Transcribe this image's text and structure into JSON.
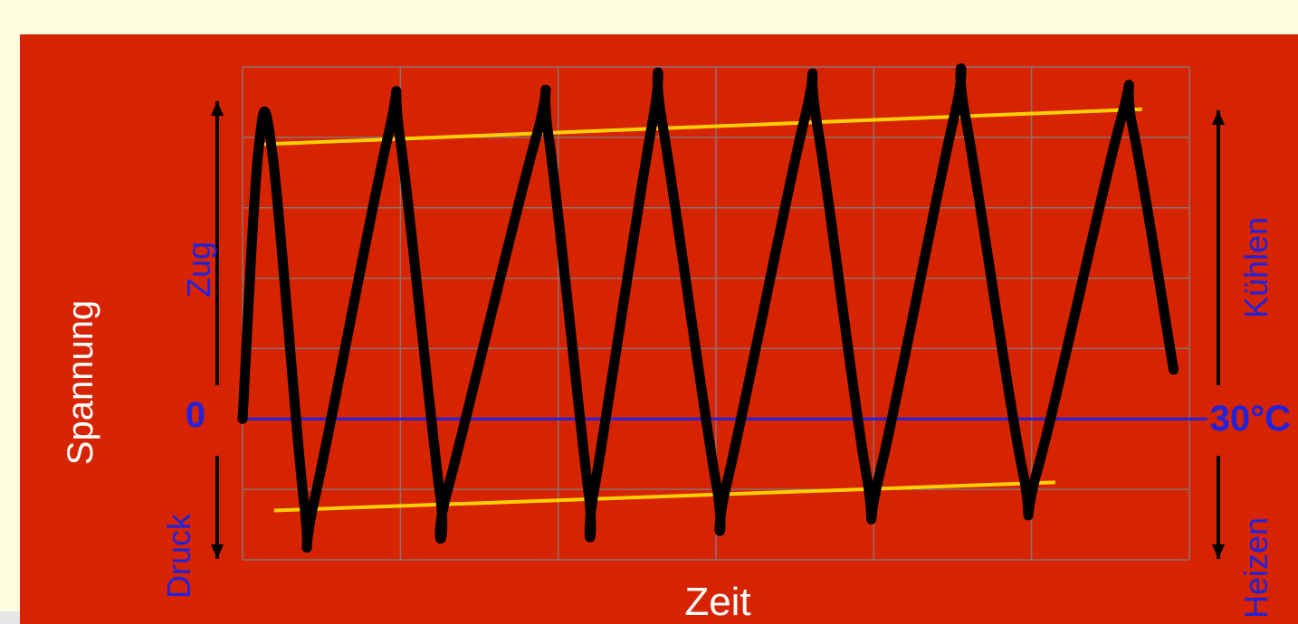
{
  "chart_data": {
    "type": "line",
    "ylabel": "Spannung",
    "xlabel": "Zeit",
    "left_labels": {
      "upper": "Zug",
      "zero": "0",
      "lower": "Druck"
    },
    "right_labels": {
      "upper": "Kühlen",
      "zero": "30°C",
      "lower": "Heizen"
    },
    "xlim": [
      0,
      6
    ],
    "ylim": [
      -2,
      5
    ],
    "grid": true,
    "series": [
      {
        "values": [
          [
            0.0,
            0.0
          ],
          [
            0.1,
            3.8
          ],
          [
            0.19,
            3.75
          ],
          [
            0.39,
            -1.2
          ],
          [
            0.46,
            -1.1
          ],
          [
            0.92,
            4.0
          ],
          [
            1.0,
            3.95
          ],
          [
            1.25,
            -1.05
          ],
          [
            1.3,
            -1.0
          ],
          [
            1.86,
            4.0
          ],
          [
            1.94,
            4.0
          ],
          [
            2.19,
            -1.0
          ],
          [
            2.23,
            -0.98
          ],
          [
            2.6,
            4.25
          ],
          [
            2.66,
            4.2
          ],
          [
            3.0,
            -0.9
          ],
          [
            3.07,
            -0.9
          ],
          [
            3.56,
            4.25
          ],
          [
            3.64,
            4.2
          ],
          [
            3.95,
            -0.75
          ],
          [
            4.04,
            -0.75
          ],
          [
            4.51,
            4.3
          ],
          [
            4.58,
            4.3
          ],
          [
            4.94,
            -0.7
          ],
          [
            5.04,
            -0.7
          ],
          [
            5.56,
            4.2
          ],
          [
            5.64,
            4.15
          ],
          [
            5.9,
            0.7
          ]
        ],
        "color": "#000000"
      }
    ],
    "envelope_lines": [
      {
        "from": [
          0.12,
          3.9
        ],
        "to": [
          5.7,
          4.4
        ],
        "color": "#ffd000"
      },
      {
        "from": [
          0.2,
          -1.3
        ],
        "to": [
          5.15,
          -0.9
        ],
        "color": "#ffd000"
      }
    ],
    "zero_line_color": "#2222dd",
    "background_color": "#d62300",
    "grid_color": "#8c7272",
    "arrow_color": "#000000"
  }
}
